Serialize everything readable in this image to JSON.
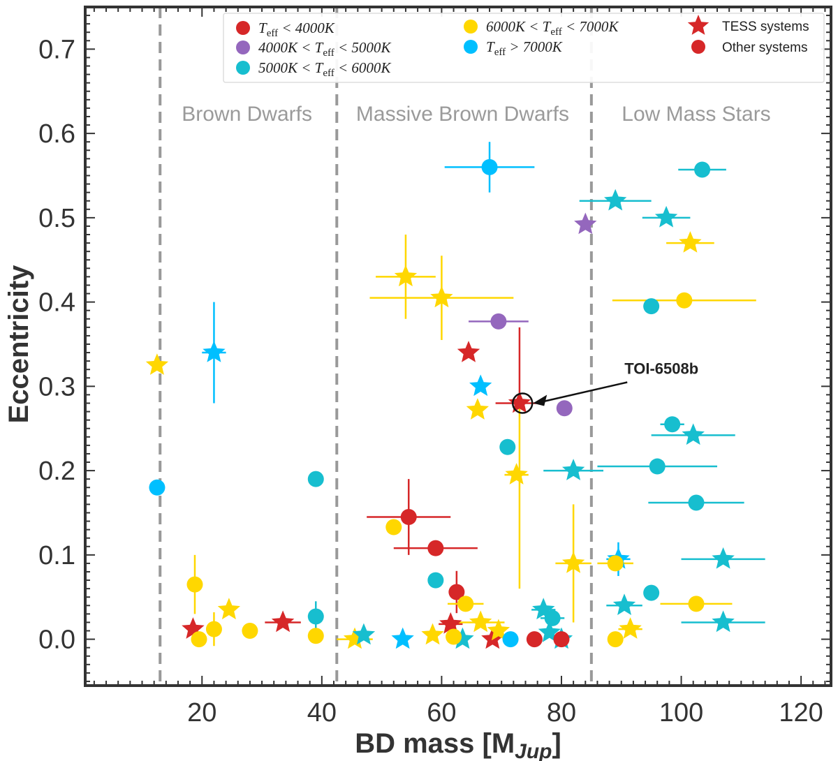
{
  "chart_data": {
    "type": "scatter",
    "title": "",
    "xlabel": "BD mass [M",
    "xlabel_sub": "Jup",
    "xlabel_close": "]",
    "ylabel": "Eccentricity",
    "xlim": [
      0.5,
      125
    ],
    "ylim": [
      -0.055,
      0.75
    ],
    "xticks": [
      "20",
      "40",
      "60",
      "80",
      "100",
      "120"
    ],
    "xtick_values": [
      20,
      40,
      60,
      80,
      100,
      120
    ],
    "yticks": [
      "0.0",
      "0.1",
      "0.2",
      "0.3",
      "0.4",
      "0.5",
      "0.6",
      "0.7"
    ],
    "ytick_values": [
      0,
      0.1,
      0.2,
      0.3,
      0.4,
      0.5,
      0.6,
      0.7
    ],
    "dividers": [
      13,
      42.5,
      85
    ],
    "regions": [
      {
        "label": "Brown Dwarfs",
        "x": 27.5
      },
      {
        "label": "Massive Brown Dwarfs",
        "x": 63.5
      },
      {
        "label": "Low Mass Stars",
        "x": 102.5
      }
    ],
    "region_label_y": 0.615,
    "colors": {
      "lt4000": "#d62728",
      "4000-5000": "#9467bd",
      "5000-6000": "#17becf",
      "6000-7000": "#ffd700",
      "gt7000": "#00bfff"
    },
    "legend": {
      "entries": [
        {
          "group": "lt4000",
          "marker": "circle",
          "parts": [
            [
              "T",
              "i"
            ],
            [
              "eff",
              "sub"
            ],
            [
              " < 4000",
              "i"
            ],
            [
              "K",
              "i"
            ]
          ]
        },
        {
          "group": "4000-5000",
          "marker": "circle",
          "parts": [
            [
              "4000",
              "i"
            ],
            [
              "K",
              "i"
            ],
            [
              " < T",
              "i"
            ],
            [
              "eff",
              "sub"
            ],
            [
              " < 5000",
              "i"
            ],
            [
              "K",
              "i"
            ]
          ]
        },
        {
          "group": "5000-6000",
          "marker": "circle",
          "parts": [
            [
              "5000",
              "i"
            ],
            [
              "K",
              "i"
            ],
            [
              " < T",
              "i"
            ],
            [
              "eff",
              "sub"
            ],
            [
              " < 6000",
              "i"
            ],
            [
              "K",
              "i"
            ]
          ]
        },
        {
          "group": "6000-7000",
          "marker": "circle",
          "parts": [
            [
              "6000",
              "i"
            ],
            [
              "K",
              "i"
            ],
            [
              " < T",
              "i"
            ],
            [
              "eff",
              "sub"
            ],
            [
              " < 7000",
              "i"
            ],
            [
              "K",
              "i"
            ]
          ]
        },
        {
          "group": "gt7000",
          "marker": "circle",
          "parts": [
            [
              "T",
              "i"
            ],
            [
              "eff",
              "sub"
            ],
            [
              " > 7000",
              "i"
            ],
            [
              "K",
              "i"
            ]
          ]
        }
      ],
      "tess_label": "TESS systems",
      "other_label": "Other systems"
    },
    "annotation": {
      "label": "TOI-6508b",
      "x": 73.5,
      "y": 0.28
    },
    "series": [
      {
        "name": "TESS systems",
        "marker": "star",
        "points": [
          {
            "x": 12.5,
            "y": 0.325,
            "g": "6000-7000"
          },
          {
            "x": 22,
            "y": 0.34,
            "g": "gt7000",
            "xerr": 2,
            "yerr": 0.06
          },
          {
            "x": 18.5,
            "y": 0.012,
            "g": "lt4000"
          },
          {
            "x": 24.5,
            "y": 0.035,
            "g": "6000-7000"
          },
          {
            "x": 33.5,
            "y": 0.02,
            "g": "lt4000",
            "xerr": 3
          },
          {
            "x": 45.5,
            "y": 0.0,
            "g": "6000-7000",
            "xerr": 3
          },
          {
            "x": 47,
            "y": 0.005,
            "g": "5000-6000"
          },
          {
            "x": 54,
            "y": 0.43,
            "g": "6000-7000",
            "xerr": 5,
            "yerr": 0.05
          },
          {
            "x": 60,
            "y": 0.405,
            "g": "6000-7000",
            "xerr": 12,
            "yerr": 0.05
          },
          {
            "x": 64.5,
            "y": 0.34,
            "g": "lt4000"
          },
          {
            "x": 66.5,
            "y": 0.3,
            "g": "gt7000"
          },
          {
            "x": 66,
            "y": 0.272,
            "g": "6000-7000"
          },
          {
            "x": 72.5,
            "y": 0.195,
            "g": "6000-7000",
            "xerr": 2
          },
          {
            "x": 84,
            "y": 0.492,
            "g": "4000-5000"
          },
          {
            "x": 89,
            "y": 0.52,
            "g": "5000-6000",
            "xerr": 6
          },
          {
            "x": 97.5,
            "y": 0.5,
            "g": "5000-6000",
            "xerr": 4
          },
          {
            "x": 101.5,
            "y": 0.47,
            "g": "6000-7000",
            "xerr": 4
          },
          {
            "x": 102,
            "y": 0.242,
            "g": "5000-6000",
            "xerr": 7
          },
          {
            "x": 82,
            "y": 0.2,
            "g": "5000-6000",
            "xerr": 5
          },
          {
            "x": 82,
            "y": 0.09,
            "g": "6000-7000",
            "xerr": 3,
            "yerr": 0.07
          },
          {
            "x": 89.5,
            "y": 0.095,
            "g": "gt7000",
            "xerr": 2,
            "yerr": 0.02
          },
          {
            "x": 90.5,
            "y": 0.04,
            "g": "5000-6000",
            "xerr": 3
          },
          {
            "x": 91.5,
            "y": 0.012,
            "g": "6000-7000",
            "xerr": 2
          },
          {
            "x": 107,
            "y": 0.095,
            "g": "5000-6000",
            "xerr": 7
          },
          {
            "x": 107,
            "y": 0.02,
            "g": "5000-6000",
            "xerr": 7
          },
          {
            "x": 53.5,
            "y": 0.0,
            "g": "gt7000"
          },
          {
            "x": 58.5,
            "y": 0.005,
            "g": "6000-7000"
          },
          {
            "x": 61.5,
            "y": 0.018,
            "g": "lt4000",
            "xerr": 2
          },
          {
            "x": 63.5,
            "y": 0.0,
            "g": "5000-6000"
          },
          {
            "x": 66.5,
            "y": 0.02,
            "g": "6000-7000",
            "xerr": 4
          },
          {
            "x": 68.5,
            "y": 0.0,
            "g": "lt4000"
          },
          {
            "x": 69.5,
            "y": 0.01,
            "g": "6000-7000"
          },
          {
            "x": 73,
            "y": 0.28,
            "g": "lt4000",
            "xerr": 4,
            "yerr_hi": 0.09,
            "yerr_lo": 0.22,
            "yerr_color": "lt4000",
            "yerr_hi_color": "lt4000"
          },
          {
            "x": 77,
            "y": 0.035,
            "g": "5000-6000",
            "xerr": 2
          },
          {
            "x": 78,
            "y": 0.008,
            "g": "5000-6000"
          },
          {
            "x": 80,
            "y": 0.0,
            "g": "5000-6000"
          }
        ]
      },
      {
        "name": "Other systems",
        "marker": "circle",
        "points": [
          {
            "x": 12.5,
            "y": 0.18,
            "g": "gt7000"
          },
          {
            "x": 18.8,
            "y": 0.065,
            "g": "6000-7000",
            "yerr": 0.035
          },
          {
            "x": 19.5,
            "y": 0.0,
            "g": "6000-7000"
          },
          {
            "x": 22,
            "y": 0.012,
            "g": "6000-7000",
            "yerr": 0.02
          },
          {
            "x": 28,
            "y": 0.01,
            "g": "6000-7000"
          },
          {
            "x": 39,
            "y": 0.19,
            "g": "5000-6000"
          },
          {
            "x": 39,
            "y": 0.027,
            "g": "5000-6000",
            "yerr": 0.018
          },
          {
            "x": 39,
            "y": 0.004,
            "g": "6000-7000"
          },
          {
            "x": 52,
            "y": 0.133,
            "g": "6000-7000"
          },
          {
            "x": 54.5,
            "y": 0.145,
            "g": "lt4000",
            "xerr": 7,
            "yerr": 0.045
          },
          {
            "x": 59,
            "y": 0.108,
            "g": "lt4000",
            "xerr": 7
          },
          {
            "x": 59,
            "y": 0.07,
            "g": "5000-6000"
          },
          {
            "x": 62.5,
            "y": 0.056,
            "g": "lt4000",
            "yerr": 0.025
          },
          {
            "x": 64,
            "y": 0.042,
            "g": "6000-7000",
            "xerr": 3
          },
          {
            "x": 62,
            "y": 0.003,
            "g": "6000-7000"
          },
          {
            "x": 68,
            "y": 0.56,
            "g": "gt7000",
            "xerr": 7.5,
            "yerr": 0.03
          },
          {
            "x": 69.5,
            "y": 0.377,
            "g": "4000-5000",
            "xerr": 5
          },
          {
            "x": 71,
            "y": 0.228,
            "g": "5000-6000"
          },
          {
            "x": 71.5,
            "y": 0.0,
            "g": "gt7000"
          },
          {
            "x": 75.5,
            "y": 0.0,
            "g": "lt4000"
          },
          {
            "x": 78.5,
            "y": 0.025,
            "g": "5000-6000",
            "xerr": 2
          },
          {
            "x": 80.5,
            "y": 0.274,
            "g": "4000-5000"
          },
          {
            "x": 80,
            "y": 0.0,
            "g": "lt4000"
          },
          {
            "x": 89,
            "y": 0.0,
            "g": "6000-7000"
          },
          {
            "x": 89,
            "y": 0.09,
            "g": "6000-7000",
            "xerr": 3
          },
          {
            "x": 95,
            "y": 0.395,
            "g": "5000-6000"
          },
          {
            "x": 100.5,
            "y": 0.402,
            "g": "6000-7000",
            "xerr": 12
          },
          {
            "x": 95,
            "y": 0.055,
            "g": "5000-6000"
          },
          {
            "x": 98.5,
            "y": 0.255,
            "g": "5000-6000",
            "xerr": 2
          },
          {
            "x": 96,
            "y": 0.205,
            "g": "5000-6000",
            "xerr": 10
          },
          {
            "x": 102.5,
            "y": 0.162,
            "g": "5000-6000",
            "xerr": 8
          },
          {
            "x": 103.5,
            "y": 0.557,
            "g": "5000-6000",
            "xerr": 4
          },
          {
            "x": 102.5,
            "y": 0.042,
            "g": "6000-7000",
            "xerr": 6
          }
        ]
      }
    ]
  }
}
